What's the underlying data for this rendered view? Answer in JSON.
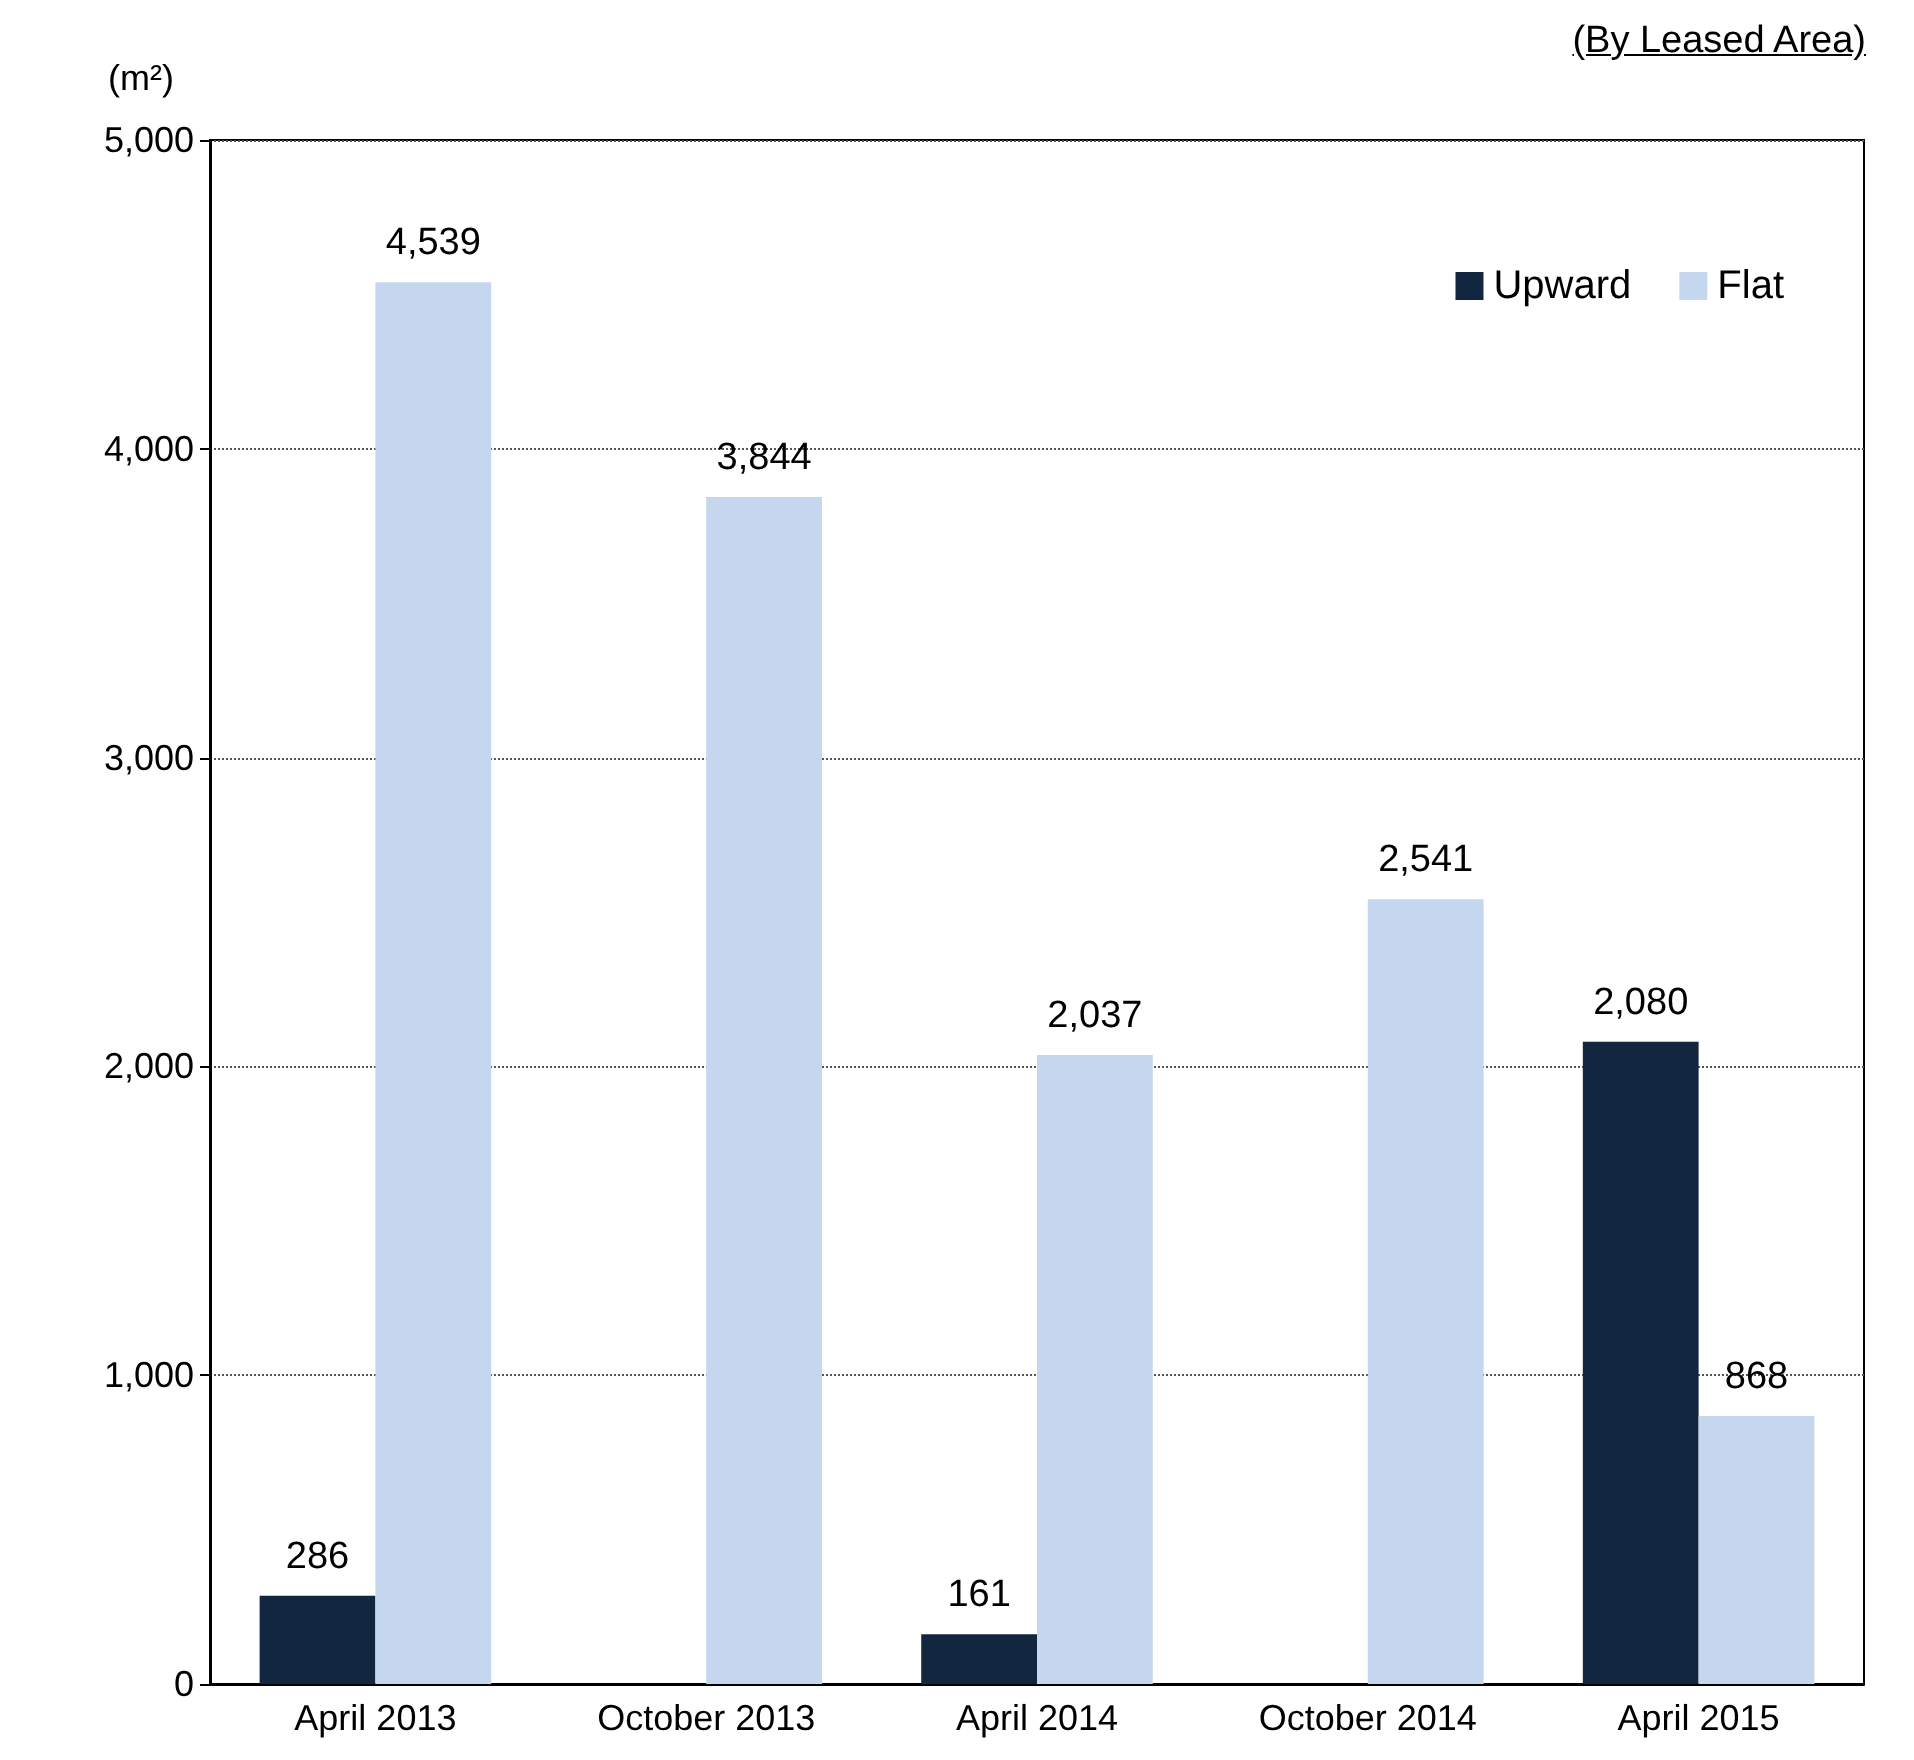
{
  "chart_data": {
    "type": "bar",
    "ylabel": "(m²)",
    "annotations": [
      "(By Leased Area)"
    ],
    "categories": [
      "April 2013",
      "October 2013",
      "April 2014",
      "October 2014",
      "April 2015"
    ],
    "series": [
      {
        "name": "Upward",
        "color": "#13263f",
        "values": [
          286,
          null,
          161,
          null,
          2080
        ],
        "value_labels": [
          "286",
          null,
          "161",
          null,
          "2,080"
        ]
      },
      {
        "name": "Flat",
        "color": "#c5d7ee",
        "values": [
          4539,
          3844,
          2037,
          2541,
          868
        ],
        "value_labels": [
          "4,539",
          "3,844",
          "2,037",
          "2,541",
          "868"
        ]
      }
    ],
    "ylim": [
      0,
      5000
    ],
    "yticks": [
      0,
      {
        "value": 1000,
        "label": "1,000"
      },
      {
        "value": 2000,
        "label": "2,000"
      },
      {
        "value": 3000,
        "label": "3,000"
      },
      {
        "value": 4000,
        "label": "4,000"
      },
      {
        "value": 5000,
        "label": "5,000"
      }
    ],
    "grid": "y",
    "legend": "top right"
  }
}
